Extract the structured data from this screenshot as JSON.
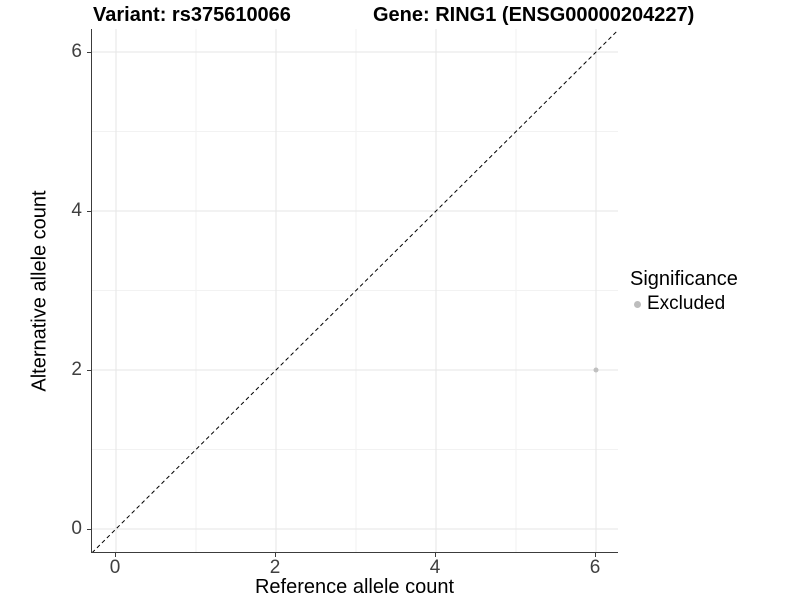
{
  "header": {
    "variant_title": "Variant: rs375610066",
    "gene_title": "Gene: RING1 (ENSG00000204227)"
  },
  "chart_data": {
    "type": "scatter",
    "title": "Variant: rs375610066   Gene: RING1 (ENSG00000204227)",
    "xlabel": "Reference allele count",
    "ylabel": "Alternative allele count",
    "xlim": [
      -0.3,
      6.275
    ],
    "ylim": [
      -0.29,
      6.29
    ],
    "x_ticks": [
      0,
      2,
      4,
      6
    ],
    "y_ticks": [
      0,
      2,
      4,
      6
    ],
    "x_minor_ticks": [
      1,
      3,
      5
    ],
    "y_minor_ticks": [
      1,
      3,
      5
    ],
    "grid": true,
    "series": [
      {
        "name": "Excluded",
        "color": "#c0c0c0",
        "points": [
          {
            "x": 6,
            "y": 2
          }
        ]
      }
    ],
    "reference_line": {
      "type": "identity",
      "equation": "y = x",
      "style": "dashed",
      "color": "#000000"
    },
    "legend": {
      "title": "Significance",
      "position": "right",
      "items": [
        {
          "label": "Excluded",
          "color": "#bdbdbd"
        }
      ]
    }
  },
  "colors": {
    "background": "#ffffff",
    "grid_major": "#e6e6e6",
    "grid_minor": "#f2f2f2",
    "axis_line": "#3c3c3c",
    "tick_label": "#404040",
    "text": "#000000"
  }
}
